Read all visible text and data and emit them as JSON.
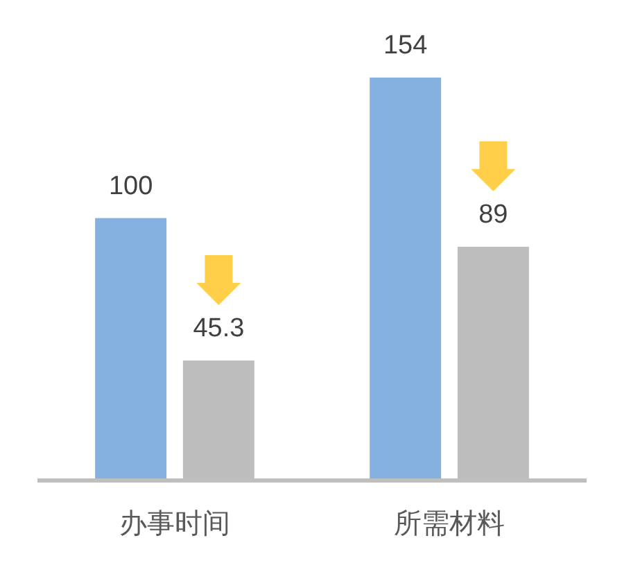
{
  "chart_data": {
    "type": "bar",
    "categories": [
      "办事时间",
      "所需材料"
    ],
    "series": [
      {
        "color": "#84b1df",
        "values": [
          100,
          154
        ]
      },
      {
        "color": "#bdbdbd",
        "values": [
          45.3,
          89
        ]
      }
    ],
    "data_labels": true
  }
}
